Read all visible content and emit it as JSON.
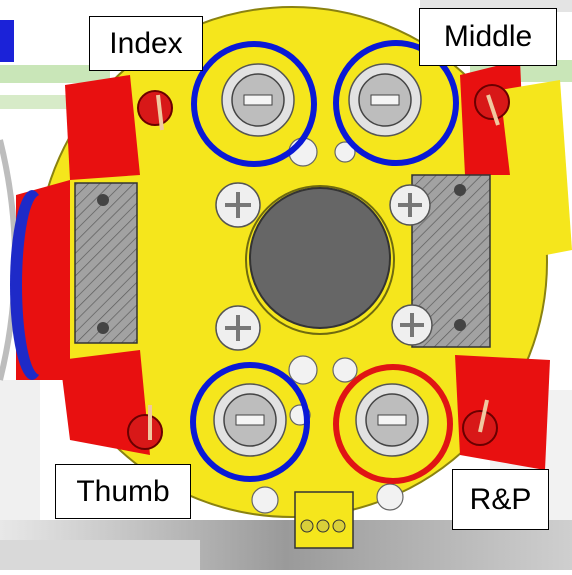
{
  "labels": {
    "index": "Index",
    "middle": "Middle",
    "thumb": "Thumb",
    "rp": "R&P"
  },
  "colors": {
    "body_yellow": "#f5e61c",
    "ring_blue": "#0a19d6",
    "ring_red": "#e01414",
    "part_red": "#e81010",
    "center_hole": "#666666",
    "side_block": "#9a9a9a",
    "screw_silver": "#d8d8d8"
  }
}
